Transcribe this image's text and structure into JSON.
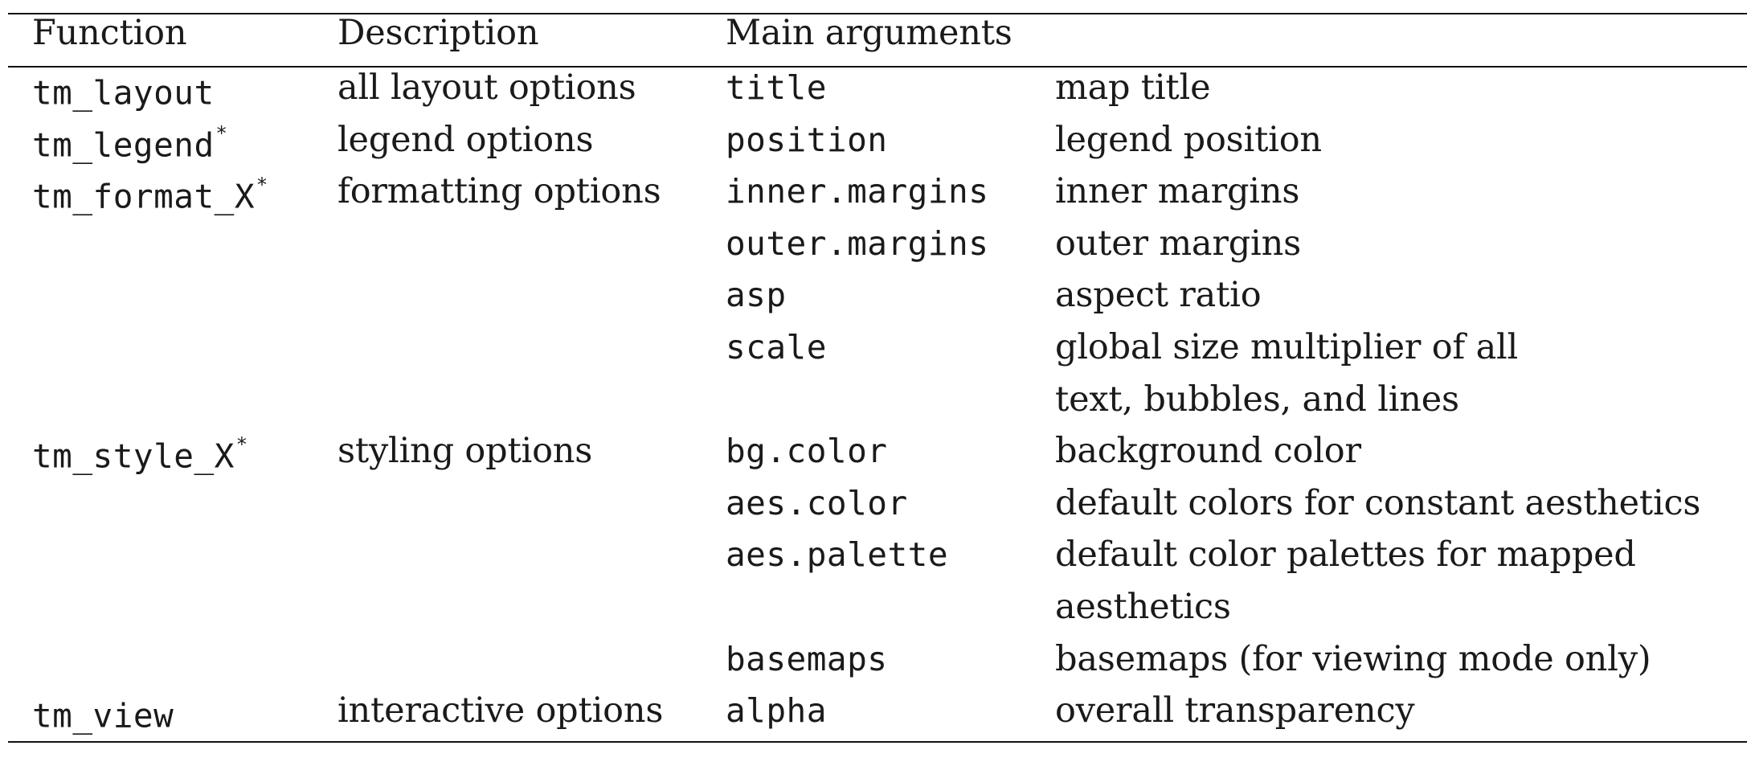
{
  "table": {
    "header": {
      "function": "Function",
      "description": "Description",
      "main_arguments": "Main arguments"
    },
    "rows": [
      {
        "function": "tm_layout",
        "function_marker": "",
        "description": "all layout options",
        "argument": "title",
        "meaning": "map title"
      },
      {
        "function": "tm_legend",
        "function_marker": "*",
        "description": "legend options",
        "argument": "position",
        "meaning": "legend position"
      },
      {
        "function": "tm_format_X",
        "function_marker": "*",
        "description": "formatting options",
        "argument": "inner.margins",
        "meaning": "inner margins"
      },
      {
        "function": "",
        "function_marker": "",
        "description": "",
        "argument": "outer.margins",
        "meaning": "outer margins"
      },
      {
        "function": "",
        "function_marker": "",
        "description": "",
        "argument": "asp",
        "meaning": "aspect ratio"
      },
      {
        "function": "",
        "function_marker": "",
        "description": "",
        "argument": "scale",
        "meaning": "global size multiplier of all"
      },
      {
        "function": "",
        "function_marker": "",
        "description": "",
        "argument": "",
        "meaning": "text, bubbles, and lines"
      },
      {
        "function": "tm_style_X",
        "function_marker": "*",
        "description": "styling options",
        "argument": "bg.color",
        "meaning": "background color"
      },
      {
        "function": "",
        "function_marker": "",
        "description": "",
        "argument": "aes.color",
        "meaning": "default colors for constant aesthetics"
      },
      {
        "function": "",
        "function_marker": "",
        "description": "",
        "argument": "aes.palette",
        "meaning": "default color palettes for mapped"
      },
      {
        "function": "",
        "function_marker": "",
        "description": "",
        "argument": "",
        "meaning": "aesthetics"
      },
      {
        "function": "",
        "function_marker": "",
        "description": "",
        "argument": "basemaps",
        "meaning": "basemaps (for viewing mode only)"
      },
      {
        "function": "tm_view",
        "function_marker": "",
        "description": "interactive options",
        "argument": "alpha",
        "meaning": "overall transparency"
      }
    ]
  }
}
